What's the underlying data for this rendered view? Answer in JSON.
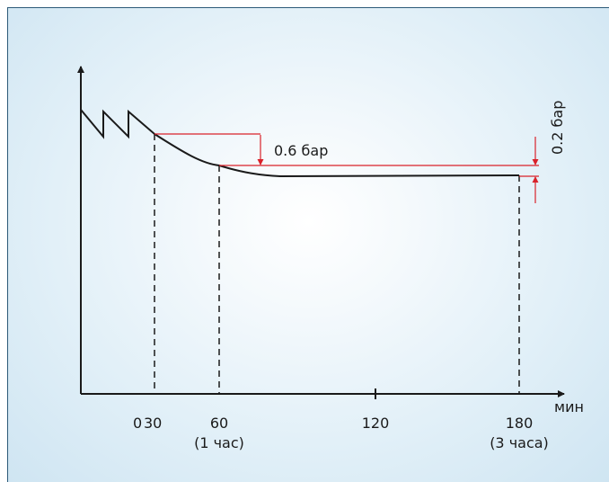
{
  "diagram": {
    "units_label": "мин",
    "x_ticks": [
      {
        "value": "0",
        "sub": ""
      },
      {
        "value": "30",
        "sub": ""
      },
      {
        "value": "60",
        "sub": "(1 час)"
      },
      {
        "value": "120",
        "sub": ""
      },
      {
        "value": "180",
        "sub": "(3 часа)"
      }
    ],
    "annotations": {
      "drop_first_hour": "0.6 бар",
      "drop_final": "0.2 бар"
    },
    "colors": {
      "curve": "#1a1a1a",
      "annotation": "#d9222a",
      "background": "#e2f0f8"
    }
  }
}
